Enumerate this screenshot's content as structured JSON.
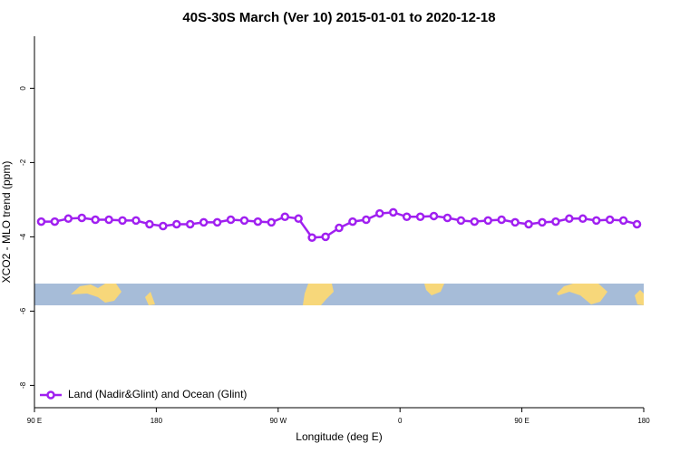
{
  "chart_data": {
    "type": "line",
    "title": "40S-30S March (Ver 10)   2015-01-01 to 2020-12-18",
    "x_label": "Longitude (deg E)",
    "y_label": "XCO2 - MLO trend (ppm)",
    "x": [
      95,
      105,
      115,
      125,
      135,
      145,
      155,
      165,
      175,
      185,
      195,
      205,
      215,
      225,
      235,
      245,
      255,
      265,
      275,
      285,
      295,
      305,
      315,
      325,
      335,
      345,
      355,
      365,
      375,
      385,
      395,
      405,
      415,
      425,
      435,
      445,
      455,
      465,
      475,
      485,
      495,
      505,
      515,
      525,
      535
    ],
    "series": [
      {
        "name": "Land (Nadir&Glint) and Ocean (Glint)",
        "color": "#a020f0",
        "values": [
          -3.59,
          -3.59,
          -3.51,
          -3.49,
          -3.54,
          -3.54,
          -3.56,
          -3.56,
          -3.66,
          -3.71,
          -3.66,
          -3.66,
          -3.61,
          -3.61,
          -3.54,
          -3.56,
          -3.59,
          -3.61,
          -3.46,
          -3.51,
          -4.02,
          -4.0,
          -3.76,
          -3.59,
          -3.54,
          -3.37,
          -3.34,
          -3.46,
          -3.46,
          -3.44,
          -3.49,
          -3.56,
          -3.59,
          -3.56,
          -3.54,
          -3.61,
          -3.66,
          -3.61,
          -3.59,
          -3.51,
          -3.51,
          -3.56,
          -3.54,
          -3.56,
          -3.66
        ]
      }
    ],
    "xlim": [
      90,
      540
    ],
    "xticks": [
      {
        "value": 90,
        "label": "90 E"
      },
      {
        "value": 180,
        "label": "180"
      },
      {
        "value": 270,
        "label": "90 W"
      },
      {
        "value": 360,
        "label": "0"
      },
      {
        "value": 450,
        "label": "90 E"
      },
      {
        "value": 540,
        "label": "180"
      }
    ],
    "ylim": [
      -8.6,
      1.4
    ],
    "yticks": [
      0,
      -2,
      -4,
      -6,
      -8
    ],
    "legend": "bottomleft"
  }
}
